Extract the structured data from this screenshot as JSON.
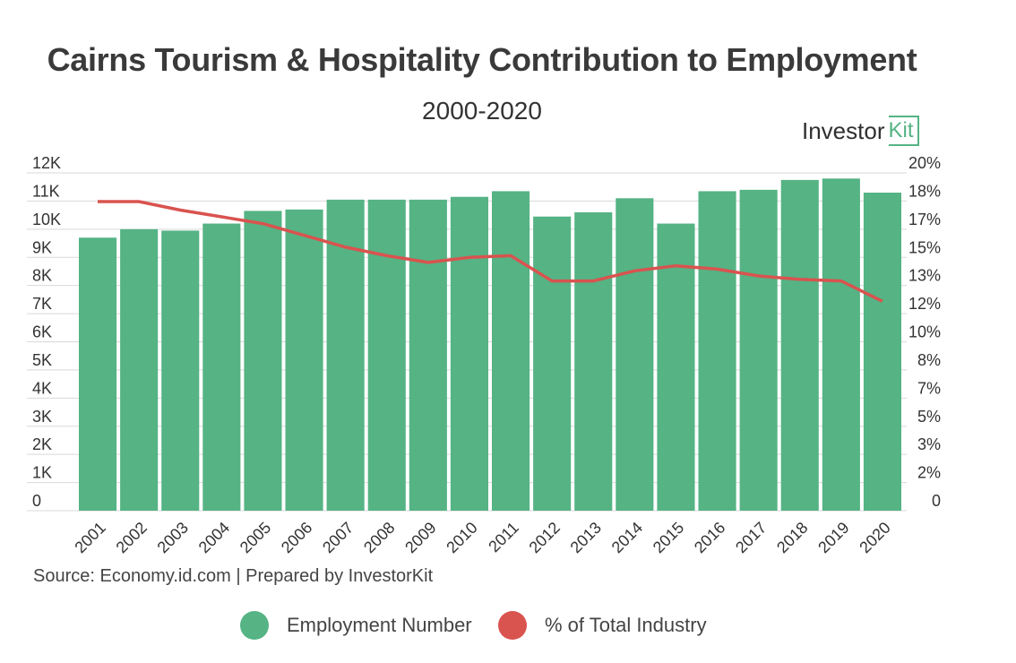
{
  "chart_data": {
    "type": "bar",
    "title": "Cairns Tourism & Hospitality Contribution to Employment",
    "subtitle": "2000-2020",
    "categories": [
      "2001",
      "2002",
      "2003",
      "2004",
      "2005",
      "2006",
      "2007",
      "2008",
      "2009",
      "2010",
      "2011",
      "2012",
      "2013",
      "2014",
      "2015",
      "2016",
      "2017",
      "2018",
      "2019",
      "2020"
    ],
    "series": [
      {
        "name": "Employment Number",
        "type": "bar",
        "axis": "left",
        "color": "#55b384",
        "values": [
          9700,
          10000,
          9950,
          10200,
          10650,
          10700,
          11050,
          11050,
          11050,
          11150,
          11350,
          10450,
          10600,
          11100,
          10200,
          11350,
          11400,
          11750,
          11800,
          11300
        ]
      },
      {
        "name": "% of Total Industry",
        "type": "line",
        "axis": "right",
        "color": "#d9534f",
        "values": [
          18.3,
          18.3,
          17.8,
          17.4,
          17.0,
          16.3,
          15.6,
          15.1,
          14.7,
          15.0,
          15.1,
          13.6,
          13.6,
          14.2,
          14.5,
          14.3,
          13.9,
          13.7,
          13.6,
          12.4
        ]
      }
    ],
    "y_left": {
      "ylim": [
        0,
        12000
      ],
      "ticks": [
        0,
        1000,
        2000,
        3000,
        4000,
        5000,
        6000,
        7000,
        8000,
        9000,
        10000,
        11000,
        12000
      ],
      "tick_labels": [
        "0",
        "1K",
        "2K",
        "3K",
        "4K",
        "5K",
        "6K",
        "7K",
        "8K",
        "9K",
        "10K",
        "11K",
        "12K"
      ]
    },
    "y_right": {
      "ylim": [
        0,
        20
      ],
      "tick_labels": [
        "0",
        "2%",
        "3%",
        "5%",
        "7%",
        "8%",
        "10%",
        "12%",
        "13%",
        "15%",
        "17%",
        "18%",
        "20%"
      ]
    },
    "grid": true,
    "legend_position": "bottom"
  },
  "branding": {
    "logo_text": "Investor",
    "logo_box_text": "Kit",
    "logo_color": "#55b384"
  },
  "source": "Source: Economy.id.com | Prepared by InvestorKit"
}
